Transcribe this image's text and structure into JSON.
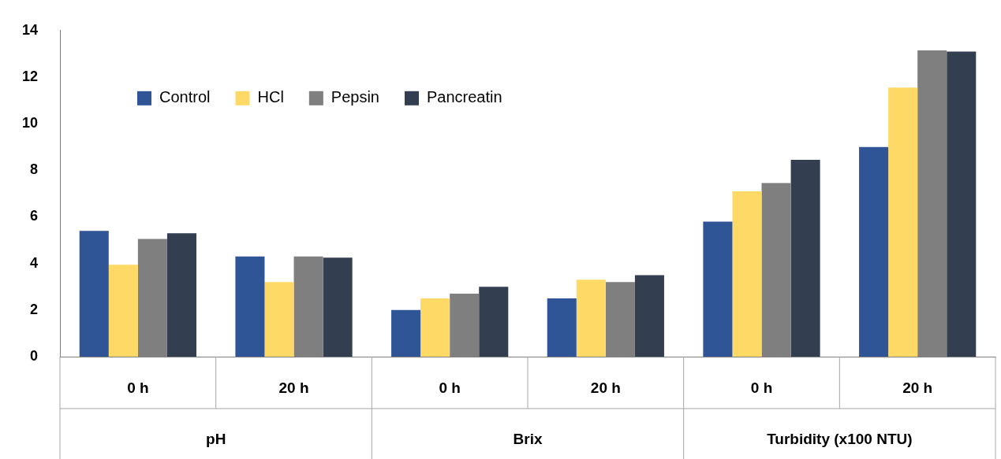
{
  "chart_data": {
    "type": "bar",
    "categories": [
      "0 h",
      "20 h",
      "0 h",
      "20 h",
      "0 h",
      "20 h"
    ],
    "annotations": [
      "pH",
      "Brix",
      "Turbidity (x100 NTU)"
    ],
    "series": [
      {
        "name": "Control",
        "color": "#2f5597",
        "values": [
          5.4,
          4.3,
          2.0,
          2.5,
          5.8,
          9.0
        ]
      },
      {
        "name": "HCl",
        "color": "#ffd966",
        "values": [
          3.95,
          3.2,
          2.5,
          3.3,
          7.1,
          11.55
        ]
      },
      {
        "name": "Pepsin",
        "color": "#7f7f7f",
        "values": [
          5.05,
          4.3,
          2.7,
          3.2,
          7.45,
          13.15
        ]
      },
      {
        "name": "Pancreatin",
        "color": "#333f50",
        "values": [
          5.3,
          4.25,
          3.0,
          3.5,
          8.45,
          13.1
        ]
      }
    ],
    "ylim": [
      0,
      14
    ],
    "yticks": [
      0,
      2,
      4,
      6,
      8,
      10,
      12,
      14
    ],
    "grid": false,
    "legend": "top left"
  }
}
